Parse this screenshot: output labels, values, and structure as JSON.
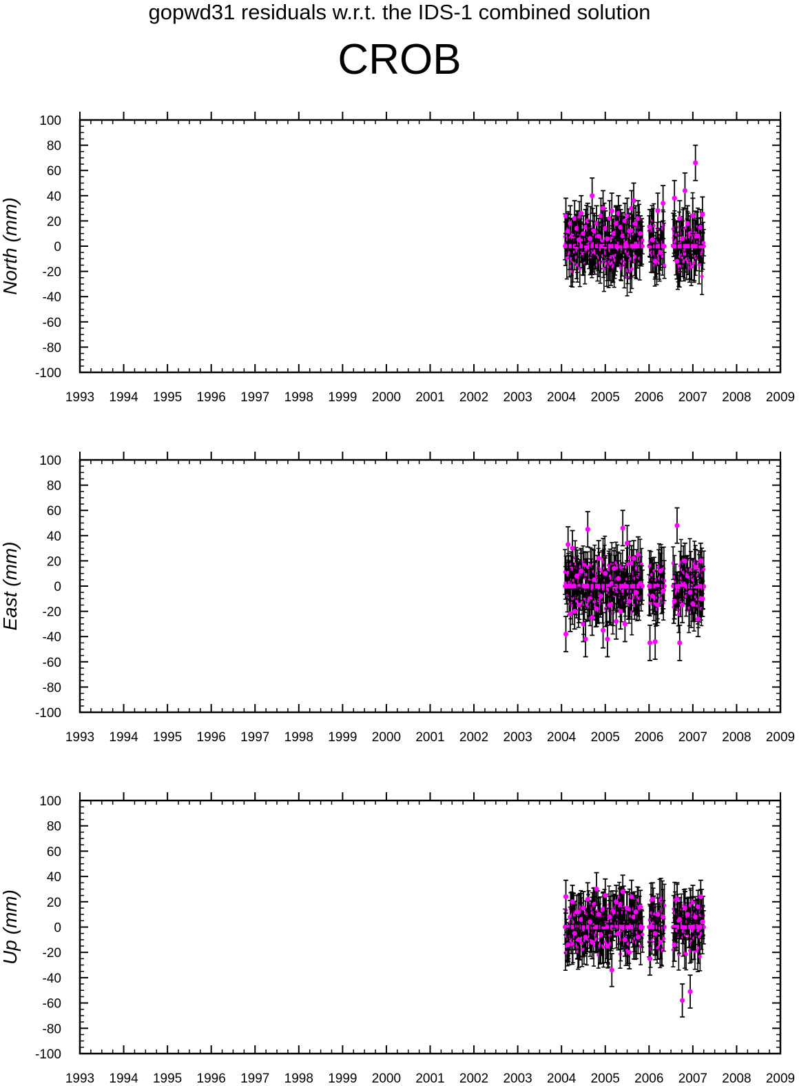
{
  "title": "gopwd31 residuals w.r.t. the IDS-1 combined solution",
  "station": "CROB",
  "colors": {
    "point": "#ff00ff",
    "errorbar": "#000000",
    "axis": "#000000"
  },
  "chart_data": [
    {
      "type": "scatter",
      "ylabel": "North (mm)",
      "xlim": [
        1993,
        2009
      ],
      "ylim": [
        -100,
        100
      ],
      "yticks": [
        100,
        80,
        60,
        40,
        20,
        0,
        -20,
        -40,
        -60,
        -80,
        -100
      ],
      "xticks": [
        1993,
        1994,
        1995,
        1996,
        1997,
        1998,
        1999,
        2000,
        2001,
        2002,
        2003,
        2004,
        2005,
        2006,
        2007,
        2008,
        2009
      ],
      "errorbars": true,
      "segments": [
        [
          2004.08,
          2005.85
        ],
        [
          2006.0,
          2006.35
        ],
        [
          2006.55,
          2007.25
        ]
      ],
      "baseline": 0,
      "typical_error_mm": 14,
      "series": [
        {
          "x": [
            2004.1,
            2004.15,
            2004.2,
            2004.25,
            2004.3,
            2004.35,
            2004.4,
            2004.45,
            2004.5,
            2004.55,
            2004.6,
            2004.65,
            2004.7,
            2004.75,
            2004.8,
            2004.85,
            2004.9,
            2004.95,
            2005.0,
            2005.05,
            2005.1,
            2005.15,
            2005.2,
            2005.25,
            2005.3,
            2005.35,
            2005.4,
            2005.45,
            2005.5,
            2005.55,
            2005.6,
            2005.65,
            2005.7,
            2005.75,
            2005.8,
            2006.02,
            2006.08,
            2006.14,
            2006.2,
            2006.26,
            2006.32,
            2006.58,
            2006.64,
            2006.7,
            2006.76,
            2006.82,
            2006.88,
            2006.94,
            2007.0,
            2007.06,
            2007.12,
            2007.18,
            2007.22
          ],
          "y": [
            24,
            12,
            18,
            8,
            22,
            14,
            5,
            26,
            10,
            15,
            20,
            6,
            40,
            12,
            18,
            8,
            24,
            30,
            14,
            6,
            22,
            28,
            10,
            18,
            26,
            15,
            8,
            20,
            24,
            12,
            30,
            36,
            18,
            22,
            10,
            15,
            5,
            -12,
            28,
            -5,
            34,
            38,
            -12,
            22,
            6,
            44,
            18,
            10,
            24,
            66,
            8,
            15,
            25
          ]
        }
      ]
    },
    {
      "type": "scatter",
      "ylabel": "East (mm)",
      "xlim": [
        1993,
        2009
      ],
      "ylim": [
        -100,
        100
      ],
      "yticks": [
        100,
        80,
        60,
        40,
        20,
        0,
        -20,
        -40,
        -60,
        -80,
        -100
      ],
      "xticks": [
        1993,
        1994,
        1995,
        1996,
        1997,
        1998,
        1999,
        2000,
        2001,
        2002,
        2003,
        2004,
        2005,
        2006,
        2007,
        2008,
        2009
      ],
      "errorbars": true,
      "segments": [
        [
          2004.08,
          2005.85
        ],
        [
          2006.0,
          2006.35
        ],
        [
          2006.55,
          2007.25
        ]
      ],
      "baseline": 0,
      "typical_error_mm": 14,
      "series": [
        {
          "x": [
            2004.1,
            2004.15,
            2004.2,
            2004.25,
            2004.3,
            2004.35,
            2004.4,
            2004.45,
            2004.5,
            2004.55,
            2004.6,
            2004.65,
            2004.7,
            2004.75,
            2004.8,
            2004.85,
            2004.9,
            2004.95,
            2005.0,
            2005.05,
            2005.1,
            2005.15,
            2005.2,
            2005.25,
            2005.3,
            2005.35,
            2005.4,
            2005.45,
            2005.5,
            2005.55,
            2005.6,
            2005.65,
            2005.7,
            2005.75,
            2005.8,
            2006.02,
            2006.08,
            2006.14,
            2006.2,
            2006.26,
            2006.32,
            2006.58,
            2006.64,
            2006.7,
            2006.76,
            2006.82,
            2006.88,
            2006.94,
            2007.0,
            2007.06,
            2007.12,
            2007.18,
            2007.22
          ],
          "y": [
            -38,
            33,
            -22,
            30,
            -20,
            8,
            -15,
            12,
            -30,
            -42,
            45,
            -10,
            -25,
            5,
            -18,
            22,
            -8,
            -35,
            10,
            -42,
            -15,
            2,
            14,
            -28,
            6,
            -20,
            46,
            -30,
            34,
            -12,
            18,
            22,
            -5,
            25,
            2,
            -45,
            -8,
            -44,
            -15,
            12,
            -4,
            -12,
            48,
            -45,
            -15,
            20,
            8,
            -5,
            -14,
            15,
            -26,
            20,
            -10
          ]
        }
      ]
    },
    {
      "type": "scatter",
      "ylabel": "Up (mm)",
      "xlim": [
        1993,
        2009
      ],
      "ylim": [
        -100,
        100
      ],
      "yticks": [
        100,
        80,
        60,
        40,
        20,
        0,
        -20,
        -40,
        -60,
        -80,
        -100
      ],
      "xticks": [
        1993,
        1994,
        1995,
        1996,
        1997,
        1998,
        1999,
        2000,
        2001,
        2002,
        2003,
        2004,
        2005,
        2006,
        2007,
        2008,
        2009
      ],
      "errorbars": true,
      "segments": [
        [
          2004.08,
          2005.85
        ],
        [
          2006.0,
          2006.35
        ],
        [
          2006.55,
          2007.25
        ]
      ],
      "baseline": 0,
      "typical_error_mm": 13,
      "series": [
        {
          "x": [
            2004.1,
            2004.15,
            2004.2,
            2004.25,
            2004.3,
            2004.35,
            2004.4,
            2004.45,
            2004.5,
            2004.55,
            2004.6,
            2004.65,
            2004.7,
            2004.75,
            2004.8,
            2004.85,
            2004.9,
            2004.95,
            2005.0,
            2005.05,
            2005.1,
            2005.15,
            2005.2,
            2005.25,
            2005.3,
            2005.35,
            2005.4,
            2005.45,
            2005.5,
            2005.55,
            2005.6,
            2005.65,
            2005.7,
            2005.75,
            2005.8,
            2006.02,
            2006.08,
            2006.14,
            2006.2,
            2006.26,
            2006.32,
            2006.58,
            2006.64,
            2006.7,
            2006.76,
            2006.82,
            2006.88,
            2006.94,
            2007.0,
            2007.06,
            2007.12,
            2007.18,
            2007.22
          ],
          "y": [
            24,
            -14,
            8,
            20,
            -5,
            12,
            -10,
            6,
            15,
            -8,
            22,
            4,
            -12,
            18,
            30,
            10,
            -6,
            14,
            25,
            -15,
            8,
            -34,
            12,
            20,
            -5,
            18,
            28,
            -10,
            15,
            -20,
            24,
            8,
            12,
            -8,
            16,
            -25,
            22,
            -5,
            10,
            -12,
            8,
            -14,
            22,
            6,
            -58,
            15,
            10,
            -51,
            20,
            8,
            16,
            24,
            4
          ]
        }
      ]
    }
  ]
}
